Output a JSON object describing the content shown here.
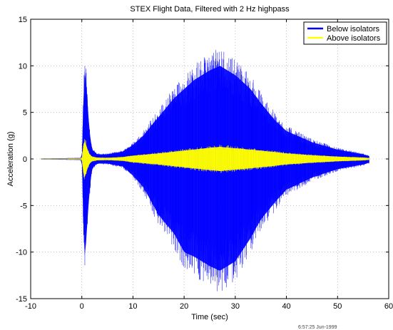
{
  "chart_data": {
    "type": "area",
    "title": "STEX Flight Data, Filtered with 2 Hz highpass",
    "xlabel": "Time (sec)",
    "ylabel": "Acceleration (g)",
    "xlim": [
      -10,
      60
    ],
    "ylim": [
      -15,
      15
    ],
    "x_ticks": [
      -10,
      0,
      10,
      20,
      30,
      40,
      50,
      60
    ],
    "y_ticks": [
      -15,
      -10,
      -5,
      0,
      5,
      10,
      15
    ],
    "grid": true,
    "legend_position": "top-right",
    "footer": "6:57:25 Jun-1999",
    "series": [
      {
        "name": "Below isolators",
        "color": "#0000ff",
        "envelope_x": [
          -8,
          0,
          0.3,
          0.6,
          1,
          1.5,
          2,
          3,
          5,
          8,
          10,
          12,
          15,
          18,
          20,
          22,
          25,
          27,
          30,
          33,
          35,
          38,
          40,
          45,
          50,
          55,
          56.2
        ],
        "envelope_upper": [
          0.05,
          0.1,
          6,
          10,
          7,
          3,
          1,
          0.5,
          0.5,
          0.8,
          1.5,
          2.5,
          4.5,
          6.5,
          7.5,
          8.5,
          9.5,
          10,
          9,
          7.5,
          6,
          4,
          3,
          1.8,
          1,
          0.5,
          0.3
        ],
        "envelope_lower": [
          -0.05,
          -0.1,
          -6.5,
          -11,
          -7.5,
          -3.5,
          -1,
          -0.5,
          -0.5,
          -0.8,
          -1.8,
          -3,
          -6,
          -8,
          -10,
          -10.5,
          -11.5,
          -12,
          -11,
          -8.5,
          -6.5,
          -4.5,
          -3.3,
          -2,
          -1.1,
          -0.6,
          -0.4
        ]
      },
      {
        "name": "Above isolators",
        "color": "#ffff00",
        "envelope_x": [
          -8,
          0,
          0.3,
          0.6,
          1,
          1.5,
          2,
          3,
          5,
          8,
          10,
          15,
          20,
          25,
          27,
          30,
          35,
          40,
          45,
          50,
          55,
          56.2
        ],
        "envelope_upper": [
          0.03,
          0.05,
          1.5,
          2,
          1.2,
          0.5,
          0.25,
          0.15,
          0.12,
          0.2,
          0.35,
          0.6,
          0.9,
          1.2,
          1.3,
          1.15,
          0.9,
          0.6,
          0.4,
          0.25,
          0.15,
          0.1
        ],
        "envelope_lower": [
          -0.03,
          -0.05,
          -1.5,
          -2,
          -1.2,
          -0.5,
          -0.25,
          -0.15,
          -0.12,
          -0.2,
          -0.35,
          -0.6,
          -0.9,
          -1.2,
          -1.3,
          -1.15,
          -0.9,
          -0.6,
          -0.4,
          -0.25,
          -0.15,
          -0.1
        ]
      }
    ]
  }
}
